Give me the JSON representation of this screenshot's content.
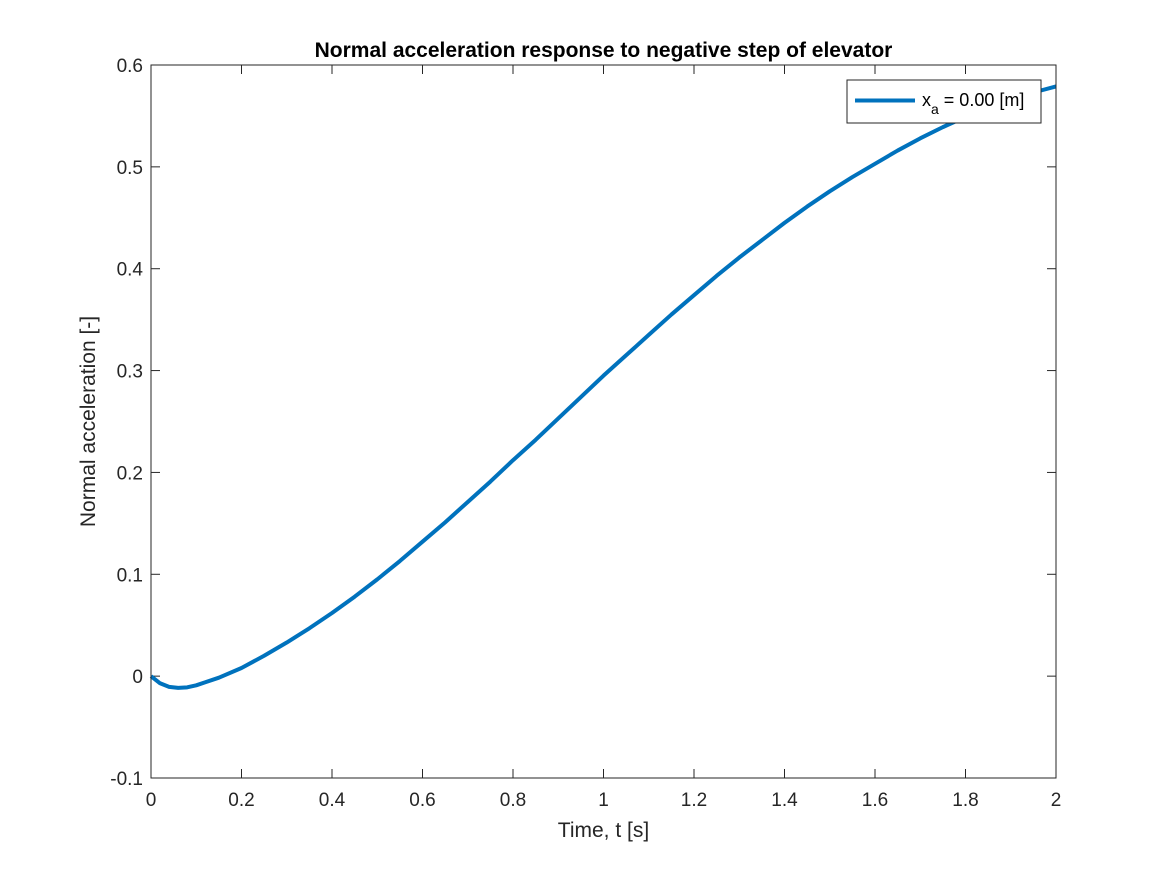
{
  "chart_data": {
    "type": "line",
    "title": "Normal acceleration response to negative step of elevator",
    "xlabel": "Time, t [s]",
    "ylabel": "Normal acceleration [-]",
    "xlim": [
      0,
      2
    ],
    "ylim": [
      -0.1,
      0.6
    ],
    "xticks": [
      0,
      0.2,
      0.4,
      0.6,
      0.8,
      1,
      1.2,
      1.4,
      1.6,
      1.8,
      2
    ],
    "xtick_labels": [
      "0",
      "0.2",
      "0.4",
      "0.6",
      "0.8",
      "1",
      "1.2",
      "1.4",
      "1.6",
      "1.8",
      "2"
    ],
    "yticks": [
      -0.1,
      0,
      0.1,
      0.2,
      0.3,
      0.4,
      0.5,
      0.6
    ],
    "ytick_labels": [
      "-0.1",
      "0",
      "0.1",
      "0.2",
      "0.3",
      "0.4",
      "0.5",
      "0.6"
    ],
    "grid": false,
    "legend_position": "top-right",
    "series": [
      {
        "name": "x_a = 0.00 [m]",
        "legend_main": "x",
        "legend_sub": "a",
        "legend_rest": " = 0.00 [m]",
        "color": "#0072BD",
        "x": [
          0,
          0.02,
          0.04,
          0.06,
          0.08,
          0.1,
          0.12,
          0.15,
          0.2,
          0.25,
          0.3,
          0.35,
          0.4,
          0.45,
          0.5,
          0.55,
          0.6,
          0.65,
          0.7,
          0.75,
          0.8,
          0.85,
          0.9,
          0.95,
          1.0,
          1.05,
          1.1,
          1.15,
          1.2,
          1.25,
          1.3,
          1.35,
          1.4,
          1.45,
          1.5,
          1.55,
          1.6,
          1.65,
          1.7,
          1.75,
          1.8,
          1.85,
          1.9,
          1.95,
          2.0
        ],
        "y": [
          0,
          -0.007,
          -0.0105,
          -0.0115,
          -0.011,
          -0.009,
          -0.006,
          -0.0015,
          0.008,
          0.02,
          0.033,
          0.047,
          0.062,
          0.078,
          0.095,
          0.113,
          0.132,
          0.151,
          0.171,
          0.191,
          0.212,
          0.232,
          0.253,
          0.274,
          0.295,
          0.315,
          0.335,
          0.355,
          0.374,
          0.393,
          0.411,
          0.428,
          0.445,
          0.461,
          0.476,
          0.49,
          0.503,
          0.516,
          0.528,
          0.539,
          0.549,
          0.558,
          0.566,
          0.573,
          0.579
        ]
      }
    ]
  }
}
